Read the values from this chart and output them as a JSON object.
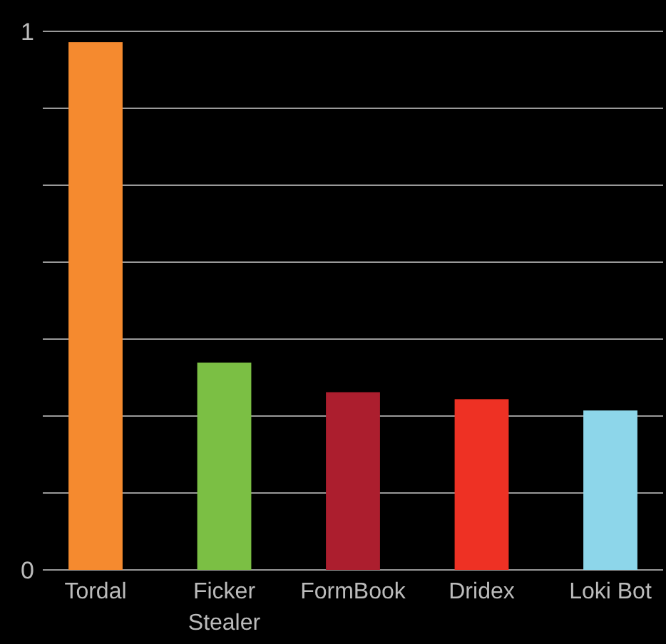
{
  "chart_data": {
    "type": "bar",
    "categories": [
      "Tordal",
      "Ficker Stealer",
      "FormBook",
      "Dridex",
      "Loki Bot"
    ],
    "values": [
      0.98,
      0.385,
      0.33,
      0.317,
      0.296
    ],
    "colors": [
      "#f58a2f",
      "#7bbf44",
      "#ac1e2e",
      "#ee3124",
      "#8dd6ea"
    ],
    "ylim": [
      0,
      1
    ],
    "yticks": [
      0,
      {
        "value": 0.142857,
        "label": null
      },
      {
        "value": 0.285714,
        "label": null
      },
      {
        "value": 0.428571,
        "label": null
      },
      {
        "value": 0.571429,
        "label": null
      },
      {
        "value": 0.714286,
        "label": null
      },
      {
        "value": 0.857143,
        "label": null
      },
      1
    ],
    "grid": "y"
  }
}
